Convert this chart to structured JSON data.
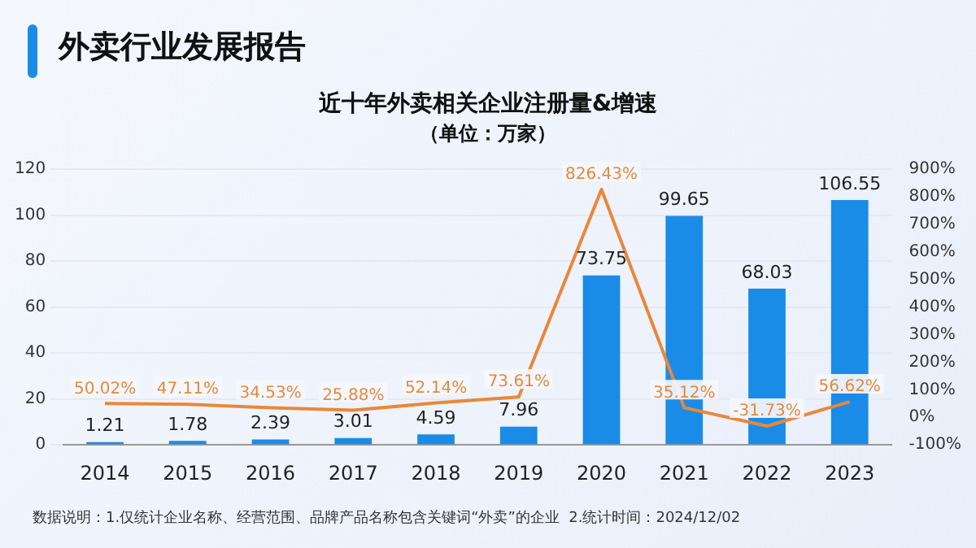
{
  "chart_data": {
    "type": "bar",
    "title": "外卖行业发展报告",
    "subtitle": "近十年外卖相关企业注册量&增速",
    "annotations": [
      "（单位：万家）",
      "数据说明：1.仅统计企业名称、经营范围、品牌产品名称包含关键词“外卖”的企业  2.统计时间：2024/12/02"
    ],
    "categories": [
      "2014",
      "2015",
      "2016",
      "2017",
      "2018",
      "2019",
      "2020",
      "2021",
      "2022",
      "2023"
    ],
    "series": [
      {
        "color": "#1a8ce8",
        "values": [
          1.21,
          1.78,
          2.39,
          3.01,
          4.59,
          7.96,
          73.75,
          99.65,
          68.03,
          106.55
        ]
      },
      {
        "type": "line",
        "axis": "y2",
        "color": "#e8883a",
        "values": [
          50.02,
          47.11,
          34.53,
          25.88,
          52.14,
          73.61,
          826.43,
          35.12,
          -31.73,
          56.62
        ],
        "value_labels": [
          "50.02%",
          "47.11%",
          "34.53%",
          "25.88%",
          "52.14%",
          "73.61%",
          "826.43%",
          "35.12%",
          "-31.73%",
          "56.62%"
        ]
      }
    ],
    "data_labels": true,
    "ylim": [
      0,
      120
    ],
    "yticks": [
      0,
      20,
      40,
      60,
      80,
      100,
      120
    ],
    "y2lim": [
      -100,
      900
    ],
    "y2ticks": [
      {
        "value": -100,
        "label": "-100%"
      },
      {
        "value": 0,
        "label": "0%"
      },
      {
        "value": 100,
        "label": "100%"
      },
      {
        "value": 200,
        "label": "200%"
      },
      {
        "value": 300,
        "label": "300%"
      },
      {
        "value": 400,
        "label": "400%"
      },
      {
        "value": 500,
        "label": "500%"
      },
      {
        "value": 600,
        "label": "600%"
      },
      {
        "value": 700,
        "label": "700%"
      },
      {
        "value": 800,
        "label": "800%"
      },
      {
        "value": 900,
        "label": "900%"
      }
    ],
    "grid": "y",
    "legend": false,
    "marker": "none",
    "line_style": "solid"
  }
}
